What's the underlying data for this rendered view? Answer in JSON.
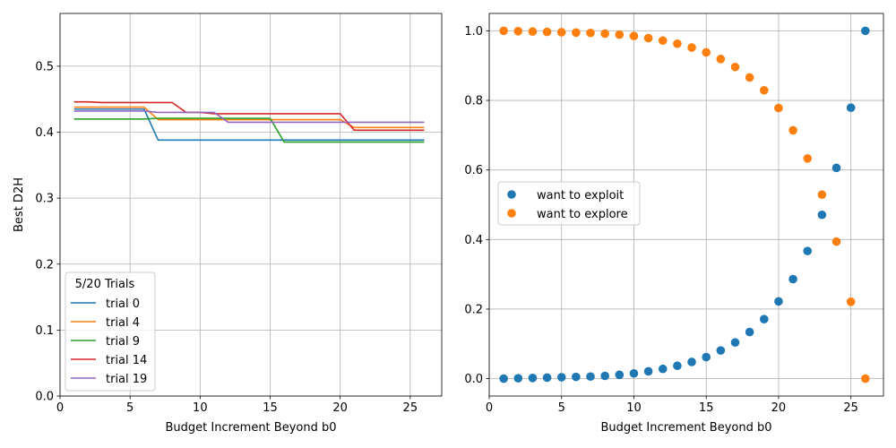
{
  "chart_data": [
    {
      "type": "line",
      "xlabel": "Budget Increment Beyond b0",
      "ylabel": "Best D2H",
      "xlim": [
        0,
        27.25
      ],
      "ylim": [
        0,
        0.58
      ],
      "xticks": [
        0,
        5,
        10,
        15,
        20,
        25
      ],
      "yticks": [
        0.0,
        0.1,
        0.2,
        0.3,
        0.4,
        0.5
      ],
      "ytick_labels": [
        "0.0",
        "0.1",
        "0.2",
        "0.3",
        "0.4",
        "0.5"
      ],
      "grid": true,
      "legend_title": "5/20 Trials",
      "legend_position": "lower-left",
      "x": [
        1,
        2,
        3,
        4,
        5,
        6,
        7,
        8,
        9,
        10,
        11,
        12,
        13,
        14,
        15,
        16,
        17,
        18,
        19,
        20,
        21,
        22,
        23,
        24,
        25,
        26
      ],
      "series": [
        {
          "name": "trial 0",
          "color": "#1f77b4",
          "values": [
            0.435,
            0.435,
            0.435,
            0.435,
            0.435,
            0.435,
            0.388,
            0.388,
            0.388,
            0.388,
            0.388,
            0.388,
            0.388,
            0.388,
            0.388,
            0.388,
            0.388,
            0.388,
            0.388,
            0.388,
            0.388,
            0.388,
            0.388,
            0.388,
            0.388,
            0.388
          ]
        },
        {
          "name": "trial 4",
          "color": "#ff7f0e",
          "values": [
            0.438,
            0.438,
            0.438,
            0.438,
            0.438,
            0.438,
            0.419,
            0.419,
            0.419,
            0.419,
            0.419,
            0.419,
            0.419,
            0.419,
            0.419,
            0.419,
            0.419,
            0.419,
            0.419,
            0.419,
            0.407,
            0.407,
            0.407,
            0.407,
            0.407,
            0.407
          ]
        },
        {
          "name": "trial 9",
          "color": "#2ca02c",
          "values": [
            0.42,
            0.42,
            0.42,
            0.42,
            0.42,
            0.42,
            0.421,
            0.421,
            0.421,
            0.421,
            0.421,
            0.421,
            0.421,
            0.421,
            0.421,
            0.385,
            0.385,
            0.385,
            0.385,
            0.385,
            0.385,
            0.385,
            0.385,
            0.385,
            0.385,
            0.385
          ]
        },
        {
          "name": "trial 14",
          "color": "#d62728",
          "values": [
            0.446,
            0.446,
            0.445,
            0.445,
            0.445,
            0.445,
            0.445,
            0.445,
            0.43,
            0.43,
            0.428,
            0.428,
            0.428,
            0.428,
            0.428,
            0.428,
            0.428,
            0.428,
            0.428,
            0.428,
            0.403,
            0.403,
            0.403,
            0.403,
            0.403,
            0.403
          ]
        },
        {
          "name": "trial 19",
          "color": "#9467bd",
          "values": [
            0.432,
            0.432,
            0.432,
            0.432,
            0.432,
            0.432,
            0.43,
            0.43,
            0.43,
            0.43,
            0.43,
            0.415,
            0.415,
            0.415,
            0.415,
            0.415,
            0.415,
            0.415,
            0.415,
            0.415,
            0.415,
            0.415,
            0.415,
            0.415,
            0.415,
            0.415
          ]
        }
      ]
    },
    {
      "type": "scatter",
      "xlabel": "Budget Increment Beyond b0",
      "ylabel": "",
      "xlim": [
        0,
        27.25
      ],
      "ylim": [
        -0.05,
        1.05
      ],
      "xticks": [
        0,
        5,
        10,
        15,
        20,
        25
      ],
      "yticks": [
        0.0,
        0.2,
        0.4,
        0.6,
        0.8,
        1.0
      ],
      "ytick_labels": [
        "0.0",
        "0.2",
        "0.4",
        "0.6",
        "0.8",
        "1.0"
      ],
      "grid": true,
      "legend_position": "center-left",
      "x": [
        1,
        2,
        3,
        4,
        5,
        6,
        7,
        8,
        9,
        10,
        11,
        12,
        13,
        14,
        15,
        16,
        17,
        18,
        19,
        20,
        21,
        22,
        23,
        24,
        25,
        26
      ],
      "series": [
        {
          "name": "want to exploit",
          "color": "#1f77b4",
          "values": [
            0.0,
            0.001,
            0.002,
            0.003,
            0.004,
            0.005,
            0.006,
            0.008,
            0.011,
            0.015,
            0.021,
            0.028,
            0.037,
            0.048,
            0.062,
            0.081,
            0.104,
            0.134,
            0.171,
            0.222,
            0.286,
            0.367,
            0.471,
            0.606,
            0.779,
            1.0
          ]
        },
        {
          "name": "want to explore",
          "color": "#ff7f0e",
          "values": [
            1.0,
            0.999,
            0.998,
            0.997,
            0.996,
            0.995,
            0.994,
            0.992,
            0.989,
            0.985,
            0.979,
            0.972,
            0.963,
            0.952,
            0.938,
            0.919,
            0.896,
            0.866,
            0.829,
            0.778,
            0.714,
            0.633,
            0.529,
            0.394,
            0.221,
            0.0
          ]
        }
      ]
    }
  ]
}
